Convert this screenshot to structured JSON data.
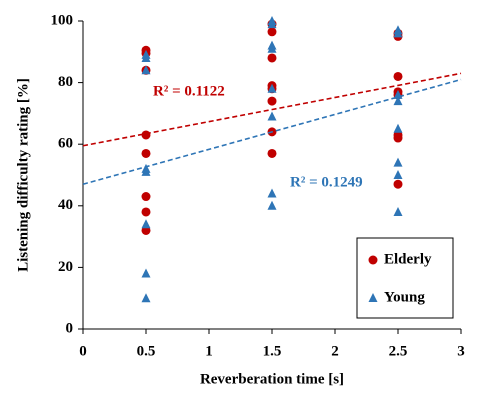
{
  "chart_data": {
    "type": "scatter",
    "xlabel": "Reverberation time [s]",
    "ylabel": "Listening difficulty rating [%]",
    "xlim": [
      0,
      3
    ],
    "xticks": [
      0,
      0.5,
      1,
      1.5,
      2,
      2.5,
      3
    ],
    "ylim": [
      0,
      100
    ],
    "yticks": [
      0,
      20,
      40,
      60,
      80,
      100
    ],
    "legend": "lower right",
    "grid": false,
    "series": [
      {
        "name": "Elderly",
        "color": "#c00000",
        "marker": "circle",
        "x": [
          0.5,
          0.5,
          0.5,
          0.5,
          0.5,
          0.5,
          0.5,
          0.5,
          1.5,
          1.5,
          1.5,
          1.5,
          1.5,
          1.5,
          1.5,
          1.5,
          2.5,
          2.5,
          2.5,
          2.5,
          2.5,
          2.5,
          2.5,
          2.5
        ],
        "values": [
          90.5,
          89.5,
          84,
          63,
          57,
          43,
          38,
          32,
          99,
          96.5,
          88,
          79,
          78,
          74,
          64,
          57,
          96,
          95,
          82,
          77,
          76,
          63,
          62,
          47
        ],
        "trendline": {
          "x": [
            0,
            3
          ],
          "y": [
            59.5,
            83
          ]
        }
      },
      {
        "name": "Young",
        "color": "#2e75b6",
        "marker": "triangle",
        "x": [
          0.5,
          0.5,
          0.5,
          0.5,
          0.5,
          0.5,
          0.5,
          0.5,
          1.5,
          1.5,
          1.5,
          1.5,
          1.5,
          1.5,
          1.5,
          1.5,
          2.5,
          2.5,
          2.5,
          2.5,
          2.5,
          2.5,
          2.5,
          2.5
        ],
        "values": [
          89,
          88,
          84,
          52,
          51,
          34,
          18,
          10,
          100,
          99,
          92,
          91,
          78,
          69,
          44,
          40,
          97,
          96,
          76,
          74,
          65,
          54,
          50,
          38
        ],
        "trendline": {
          "x": [
            0,
            3
          ],
          "y": [
            47,
            81
          ]
        }
      }
    ],
    "annotations": [
      {
        "text": "R² = 0.1122",
        "color": "#c00000"
      },
      {
        "text": "R² = 0.1249",
        "color": "#2e75b6"
      }
    ]
  }
}
